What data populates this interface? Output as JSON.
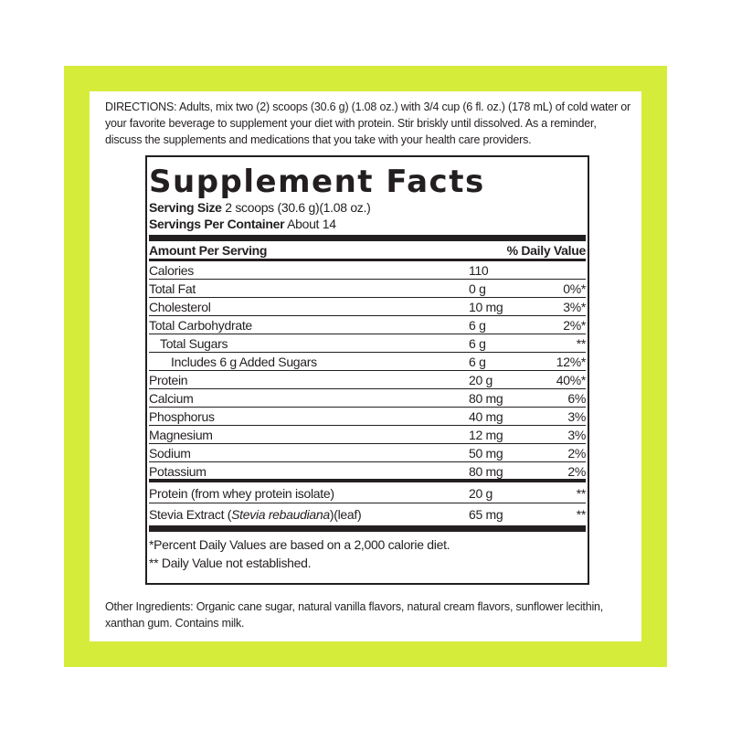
{
  "directions": {
    "label": "DIRECTIONS:",
    "text": "Adults, mix two (2) scoops (30.6 g) (1.08 oz.) with 3/4 cup (6 fl. oz.) (178 mL) of cold water or your favorite beverage to supplement your diet with protein. Stir briskly until dissolved.  As a reminder, discuss the supplements and medications that you take with your health care providers."
  },
  "facts": {
    "title": "Supplement Facts",
    "serving_size": {
      "label": "Serving Size",
      "value": "2 scoops (30.6 g)(1.08 oz.)"
    },
    "servings": {
      "label": "Servings Per Container",
      "value": "About 14"
    },
    "header": {
      "amount": "Amount Per Serving",
      "dv": "% Daily Value"
    },
    "rows": [
      [
        "Calories",
        "110"
      ],
      [
        "Total Fat",
        "0 g",
        "0%*"
      ],
      [
        "Cholesterol",
        "10 mg",
        "3%*"
      ],
      [
        "Total Carbohydrate",
        "6 g",
        "2%*"
      ],
      [
        "Total Sugars",
        "6 g",
        "**"
      ],
      [
        "Includes 6 g Added Sugars",
        "6 g",
        "12%*"
      ],
      [
        "Protein",
        "20 g",
        "40%*"
      ],
      [
        "Calcium",
        "80 mg",
        "6%"
      ],
      [
        "Phosphorus",
        "40 mg",
        "3%"
      ],
      [
        "Magnesium",
        "12 mg",
        "3%"
      ],
      [
        "Sodium",
        "50 mg",
        "2%"
      ],
      [
        "Potassium",
        "80 mg",
        "2%"
      ]
    ],
    "other_rows": [
      {
        "name": [
          "Protein (from whey protein isolate)"
        ],
        "amount": "20 g",
        "dv": "**"
      },
      {
        "name": [
          "Stevia Extract (",
          "Stevia rebaudiana",
          ")(leaf)"
        ],
        "amount": "65 mg",
        "dv": "**"
      }
    ],
    "footnotes": [
      "*Percent Daily Values are based on a 2,000 calorie diet.",
      "** Daily Value not established."
    ]
  },
  "other_ingredients": "Other Ingredients: Organic cane sugar, natural vanilla flavors, natural cream flavors, sunflower lecithin, xanthan gum.  Contains milk."
}
